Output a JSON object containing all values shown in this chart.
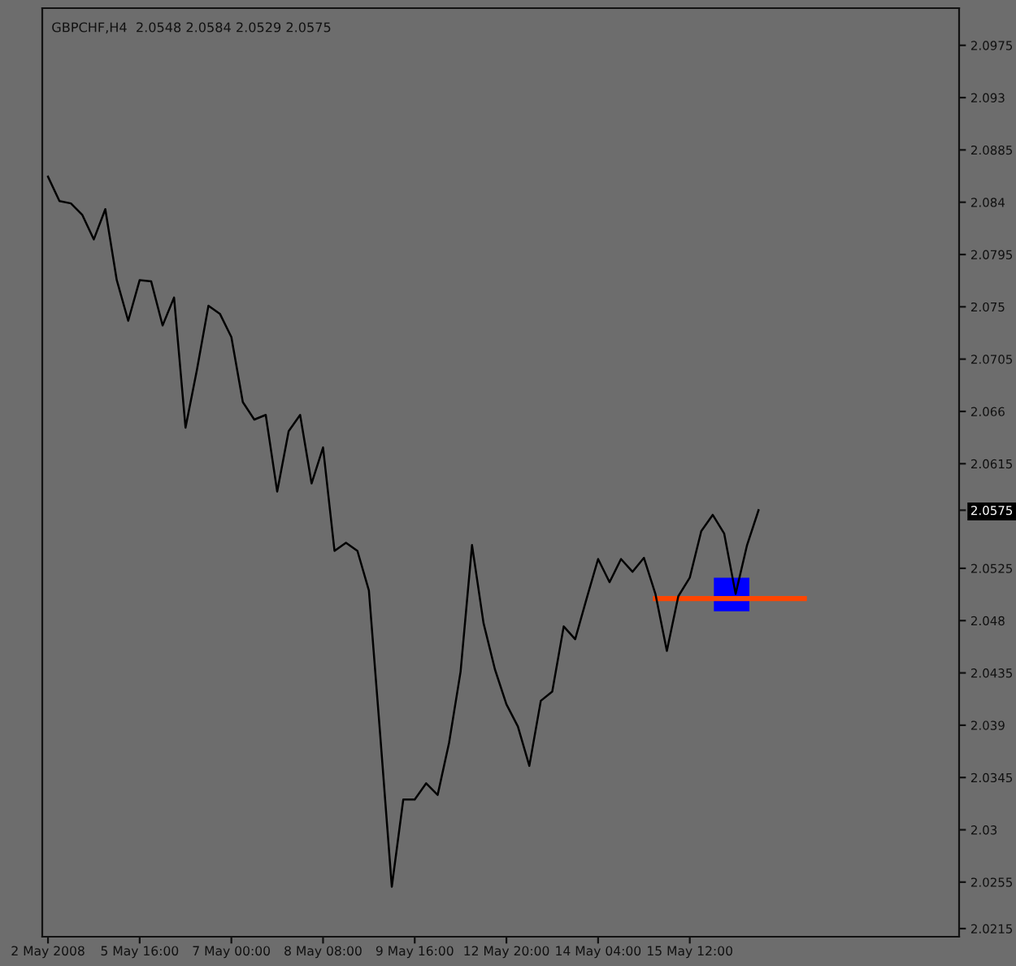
{
  "chart_data": {
    "type": "line",
    "title": "GBPCHF,H4  2.0548 2.0584 2.0529 2.0575",
    "categories": [
      "2 May 2008",
      null,
      null,
      null,
      null,
      null,
      null,
      null,
      "5 May 16:00",
      null,
      null,
      null,
      null,
      null,
      null,
      null,
      "7 May 00:00",
      null,
      null,
      null,
      null,
      null,
      null,
      null,
      "8 May 08:00",
      null,
      null,
      null,
      null,
      null,
      null,
      null,
      "9 May 16:00",
      null,
      null,
      null,
      null,
      null,
      null,
      null,
      "12 May 20:00",
      null,
      null,
      null,
      null,
      null,
      null,
      null,
      "14 May 04:00",
      null,
      null,
      null,
      null,
      null,
      null,
      null,
      "15 May 12:00",
      null,
      null,
      null,
      null,
      null,
      null,
      null,
      null,
      null,
      null,
      null,
      null,
      null,
      null,
      null,
      null,
      null,
      null,
      null,
      null,
      null,
      null,
      null
    ],
    "series": [
      {
        "color": "#000000",
        "values": [
          2.0862,
          2.0841,
          2.0839,
          2.0829,
          2.0808,
          2.0834,
          2.0773,
          2.0738,
          2.0773,
          2.0772,
          2.0734,
          2.0758,
          2.0646,
          2.0696,
          2.0751,
          2.0744,
          2.0724,
          2.0668,
          2.0653,
          2.0657,
          2.0591,
          2.0643,
          2.0657,
          2.0598,
          2.0629,
          2.054,
          2.0547,
          2.054,
          2.0506,
          2.038,
          2.0251,
          2.0326,
          2.0326,
          2.034,
          2.033,
          2.0375,
          2.0436,
          2.0545,
          2.0478,
          2.0438,
          2.0408,
          2.0389,
          2.0355,
          2.0411,
          2.0419,
          2.0475,
          2.0464,
          2.0499,
          2.0533,
          2.0513,
          2.0533,
          2.0522,
          2.0534,
          2.0503,
          2.0454,
          2.0501,
          2.0517,
          2.0557,
          2.0571,
          2.0555,
          2.0503,
          2.0545,
          2.0575,
          null,
          null,
          null,
          null,
          null,
          null,
          null,
          null,
          null,
          null,
          null,
          null,
          null,
          null,
          null,
          null,
          null
        ]
      },
      {
        "color": "#ff4500",
        "values": [
          null,
          null,
          null,
          null,
          null,
          null,
          null,
          null,
          null,
          null,
          null,
          null,
          null,
          null,
          null,
          null,
          null,
          null,
          null,
          null,
          null,
          null,
          null,
          null,
          null,
          null,
          null,
          null,
          null,
          null,
          null,
          null,
          null,
          null,
          null,
          null,
          null,
          null,
          null,
          null,
          null,
          null,
          null,
          null,
          null,
          null,
          null,
          null,
          null,
          null,
          null,
          null,
          null,
          2.0499,
          2.0499,
          2.0499,
          2.0499,
          2.0499,
          2.0499,
          2.0499,
          2.0499,
          2.0499,
          2.0499,
          2.0499,
          2.0499,
          2.0499,
          2.0499,
          null,
          null,
          null,
          null,
          null,
          null,
          null,
          null,
          null,
          null,
          null,
          null,
          null
        ]
      }
    ],
    "ylim": [
      2.0208,
      2.1007
    ],
    "yticks": [
      2.0975,
      2.093,
      2.0885,
      2.084,
      2.0795,
      2.075,
      2.0705,
      2.066,
      2.0615,
      2.0575,
      2.0525,
      2.048,
      2.0435,
      2.039,
      2.0345,
      2.03,
      2.0255,
      2.0215
    ],
    "grid": false,
    "legend": false,
    "marker": "none",
    "line_style": "solid"
  }
}
